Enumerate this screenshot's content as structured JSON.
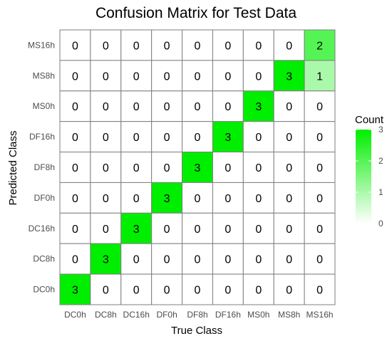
{
  "chart_data": {
    "type": "heatmap",
    "title": "Confusion Matrix for Test Data",
    "xlabel": "True Class",
    "ylabel": "Predicted Class",
    "x_categories": [
      "DC0h",
      "DC8h",
      "DC16h",
      "DF0h",
      "DF8h",
      "DF16h",
      "MS0h",
      "MS8h",
      "MS16h"
    ],
    "y_categories_top_to_bottom": [
      "MS16h",
      "MS8h",
      "MS0h",
      "DF16h",
      "DF8h",
      "DF0h",
      "DC16h",
      "DC8h",
      "DC0h"
    ],
    "values": [
      [
        0,
        0,
        0,
        0,
        0,
        0,
        0,
        0,
        2
      ],
      [
        0,
        0,
        0,
        0,
        0,
        0,
        0,
        3,
        1
      ],
      [
        0,
        0,
        0,
        0,
        0,
        0,
        3,
        0,
        0
      ],
      [
        0,
        0,
        0,
        0,
        0,
        3,
        0,
        0,
        0
      ],
      [
        0,
        0,
        0,
        0,
        3,
        0,
        0,
        0,
        0
      ],
      [
        0,
        0,
        0,
        3,
        0,
        0,
        0,
        0,
        0
      ],
      [
        0,
        0,
        3,
        0,
        0,
        0,
        0,
        0,
        0
      ],
      [
        0,
        3,
        0,
        0,
        0,
        0,
        0,
        0,
        0
      ],
      [
        3,
        0,
        0,
        0,
        0,
        0,
        0,
        0,
        0
      ]
    ],
    "color_scale": {
      "low_color": "#ffffff",
      "high_color": "#00ee00",
      "min": 0,
      "max": 3
    },
    "legend": {
      "title": "Count",
      "ticks": [
        0,
        1,
        2,
        3
      ],
      "position": "right"
    }
  }
}
